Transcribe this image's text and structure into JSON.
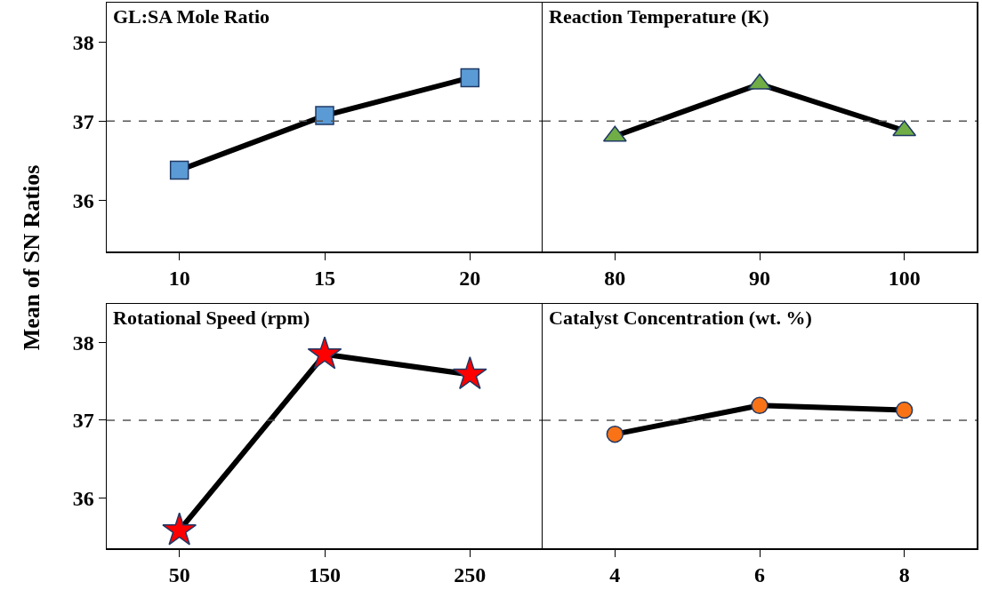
{
  "chart_data": [
    {
      "type": "line",
      "title": "GL:SA Mole Ratio",
      "ylabel": "Mean of SN Ratios",
      "categories": [
        "10",
        "15",
        "20"
      ],
      "series": [
        {
          "color": "#5b9bd5",
          "values": [
            36.38,
            37.07,
            37.55
          ]
        }
      ],
      "marker": "square",
      "ylim": [
        35.35,
        38.5
      ],
      "yticks": [
        36,
        37,
        38
      ],
      "grid": false,
      "ref_lines": [
        {
          "axis": "y",
          "value": 37,
          "color": "#555555",
          "line_style": "dashed"
        }
      ]
    },
    {
      "type": "line",
      "title": "Reaction Temperature (K)",
      "categories": [
        "80",
        "90",
        "100"
      ],
      "series": [
        {
          "color": "#70ad47",
          "values": [
            36.81,
            37.47,
            36.88
          ]
        }
      ],
      "marker": "triangle",
      "ylim": [
        35.35,
        38.5
      ],
      "yticks": [
        36,
        37,
        38
      ],
      "tick_labels": "x",
      "grid": false,
      "ref_lines": [
        {
          "axis": "y",
          "value": 37,
          "color": "#555555",
          "line_style": "dashed"
        }
      ]
    },
    {
      "type": "line",
      "title": "Rotational Speed (rpm)",
      "categories": [
        "50",
        "150",
        "250"
      ],
      "series": [
        {
          "color": "#ff0000",
          "values": [
            35.58,
            37.85,
            37.59
          ]
        }
      ],
      "marker": "star",
      "ylim": [
        35.35,
        38.5
      ],
      "yticks": [
        36,
        37,
        38
      ],
      "grid": false,
      "ref_lines": [
        {
          "axis": "y",
          "value": 37,
          "color": "#555555",
          "line_style": "dashed"
        }
      ]
    },
    {
      "type": "line",
      "title": "Catalyst Concentration (wt. %)",
      "categories": [
        "4",
        "6",
        "8"
      ],
      "series": [
        {
          "color": "#f97316",
          "values": [
            36.82,
            37.19,
            37.13
          ]
        }
      ],
      "marker": "circle",
      "ylim": [
        35.35,
        38.5
      ],
      "yticks": [
        36,
        37,
        38
      ],
      "tick_labels": "x",
      "grid": false,
      "ref_lines": [
        {
          "axis": "y",
          "value": 37,
          "color": "#555555",
          "line_style": "dashed"
        }
      ]
    }
  ]
}
